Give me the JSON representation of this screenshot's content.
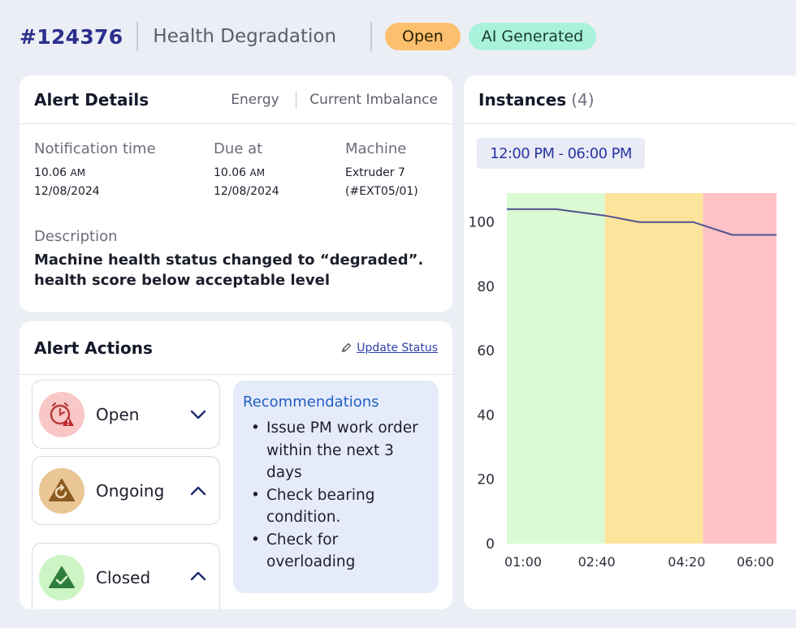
{
  "header": {
    "alert_id": "#124376",
    "title": "Health Degradation",
    "status_badge": "Open",
    "ai_badge": "AI Generated"
  },
  "details": {
    "title": "Alert Details",
    "category": "Energy",
    "subcategory": "Current Imbalance",
    "notification": {
      "label": "Notification time",
      "time": "10.06",
      "ampm": "AM",
      "date": "12/08/2024"
    },
    "due": {
      "label": "Due at",
      "time": "10.06",
      "ampm": "AM",
      "date": "12/08/2024"
    },
    "machine": {
      "label": "Machine",
      "name": "Extruder 7",
      "code": "(#EXT05/01)"
    },
    "description": {
      "label": "Description",
      "line1": "Machine health status changed to “degraded”.",
      "line2": "health score below acceptable level"
    }
  },
  "actions": {
    "title": "Alert Actions",
    "update_link": "Update Status",
    "statuses": [
      {
        "label": "Open"
      },
      {
        "label": "Ongoing"
      },
      {
        "label": "Closed"
      }
    ],
    "recommendations": {
      "title": "Recommendations",
      "item1": "Issue PM work order within the next 3 days",
      "item2": "Check bearing condition.",
      "item3": "Check for overloading"
    }
  },
  "instances": {
    "title": "Instances",
    "count": "(4)",
    "time_range": "12:00 PM - 06:00 PM"
  },
  "colors": {
    "zone_green": "#d9fad2",
    "zone_yellow": "#fde49c",
    "zone_red": "#ffc2c7",
    "line": "#4f5191"
  },
  "chart_data": {
    "type": "line",
    "title": "",
    "x_labels": [
      "01:00",
      "02:40",
      "04:20",
      "06:00"
    ],
    "xlim": [
      0,
      5.5
    ],
    "x": [
      0,
      1,
      2,
      2.7,
      3.8,
      4.6,
      5.5
    ],
    "y": [
      104,
      104,
      102,
      100,
      100,
      96,
      96
    ],
    "ylim": [
      0,
      109
    ],
    "y_ticks": [
      0,
      20,
      40,
      60,
      80,
      100
    ],
    "zones": [
      {
        "from": 0,
        "to": 2,
        "color": "#d9fad2"
      },
      {
        "from": 2,
        "to": 4,
        "color": "#fde49c"
      },
      {
        "from": 4,
        "to": 5.5,
        "color": "#ffc2c7"
      }
    ]
  }
}
